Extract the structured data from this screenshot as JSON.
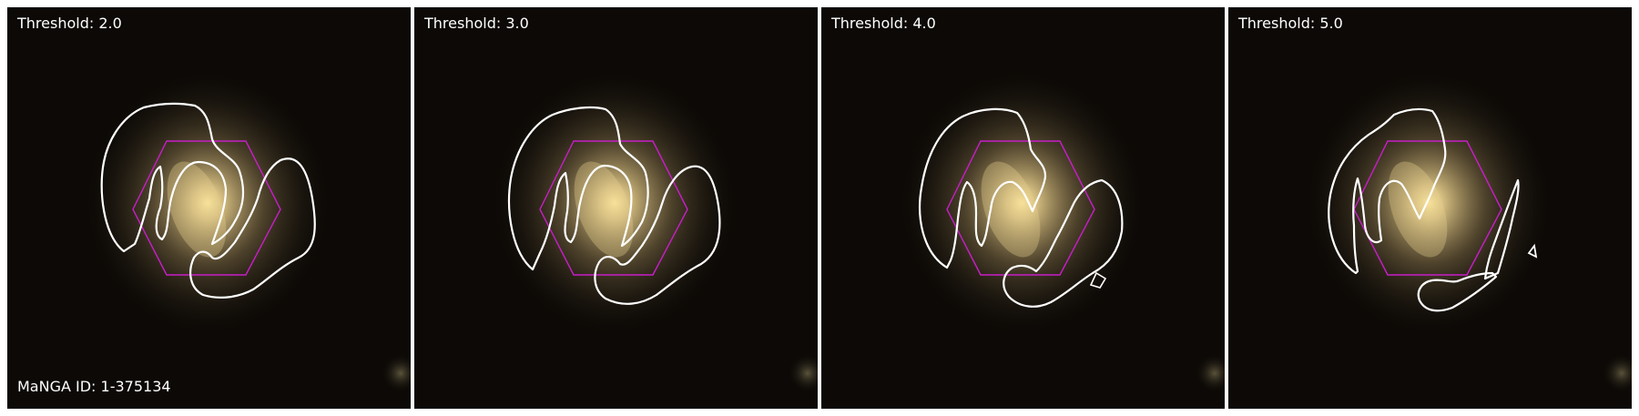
{
  "panels": [
    {
      "threshold_label": "Threshold: 2.0",
      "manga_label": "MaNGA ID: 1-375134"
    },
    {
      "threshold_label": "Threshold: 3.0"
    },
    {
      "threshold_label": "Threshold: 4.0"
    },
    {
      "threshold_label": "Threshold: 5.0"
    }
  ],
  "colors": {
    "background": "#0c0906",
    "galaxy_glow": "#d8c28a",
    "galaxy_core": "#ffe9a0",
    "contour": "#ffffff",
    "hexagon": "#c81ec8",
    "label_text": "#ffffff"
  }
}
